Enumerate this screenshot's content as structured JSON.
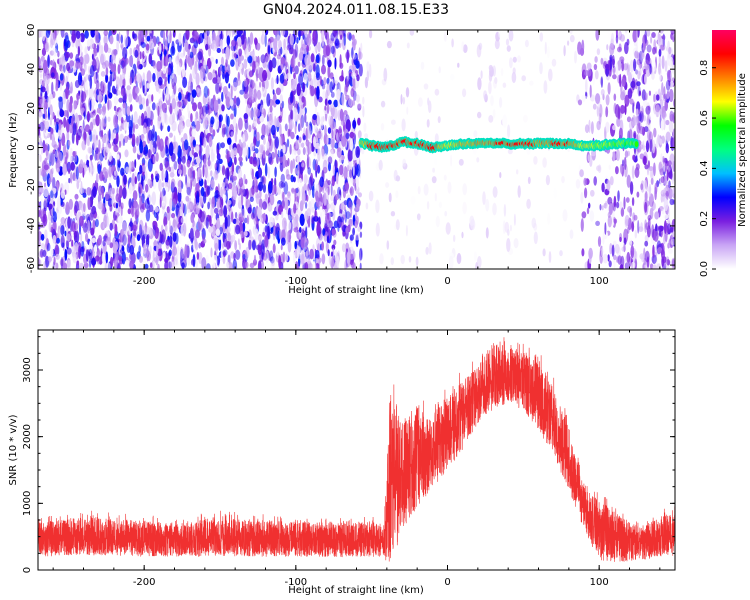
{
  "title": "GN04.2024.011.08.15.E33",
  "colors": {
    "spectrogram_noise": "#7a1fe0",
    "snr_line": "#f03030",
    "axis": "#000000"
  },
  "chart_data": [
    {
      "type": "heatmap",
      "xlabel": "Height of straight line (km)",
      "ylabel": "Frequency (Hz)",
      "xlim": [
        -270,
        150
      ],
      "ylim": [
        -62,
        60
      ],
      "xticks": [
        -200,
        -100,
        0,
        100
      ],
      "xtick_labels": [
        "-200",
        "-100",
        "0",
        "100"
      ],
      "yticks": [
        -60,
        -40,
        -20,
        0,
        20,
        40,
        60
      ],
      "ytick_labels": [
        "-60",
        "-40",
        "-20",
        "0",
        "20",
        "40",
        "60"
      ],
      "colorbar": {
        "label": "Normalized spectral amplitude",
        "range": [
          0,
          0.95
        ],
        "ticks": [
          0.0,
          0.2,
          0.4,
          0.6,
          0.8
        ],
        "tick_labels": [
          "0.0",
          "0.2",
          "0.4",
          "0.6",
          "0.8"
        ],
        "colormap": [
          "#ffffff",
          "#c9a5f5",
          "#7a1fe0",
          "#0000ff",
          "#00c0ff",
          "#00ff80",
          "#00ff00",
          "#ffff00",
          "#ff8000",
          "#ff0000",
          "#ff0060"
        ]
      },
      "regions": [
        {
          "x": [
            -270,
            -57
          ],
          "description": "broadband noise",
          "amplitude": [
            0.0,
            0.25
          ]
        },
        {
          "x": [
            -57,
            85
          ],
          "description": "near-empty band",
          "amplitude": [
            0.0,
            0.05
          ]
        },
        {
          "x": [
            85,
            150
          ],
          "description": "broadband noise (fading in)",
          "amplitude": [
            0.0,
            0.2
          ]
        }
      ],
      "signal_trace": {
        "frequency_hz": 2,
        "x": [
          -57,
          125
        ],
        "points": [
          {
            "x": -55,
            "f": 2,
            "a": 0.6
          },
          {
            "x": -50,
            "f": 1,
            "a": 0.9
          },
          {
            "x": -40,
            "f": 0,
            "a": 0.95
          },
          {
            "x": -30,
            "f": 3,
            "a": 0.85
          },
          {
            "x": -20,
            "f": 2,
            "a": 0.9
          },
          {
            "x": -10,
            "f": 0,
            "a": 0.95
          },
          {
            "x": 0,
            "f": 1,
            "a": 0.5
          },
          {
            "x": 10,
            "f": 2,
            "a": 0.7
          },
          {
            "x": 20,
            "f": 2,
            "a": 0.75
          },
          {
            "x": 30,
            "f": 2,
            "a": 0.8
          },
          {
            "x": 40,
            "f": 2,
            "a": 0.85
          },
          {
            "x": 50,
            "f": 2,
            "a": 0.9
          },
          {
            "x": 60,
            "f": 2,
            "a": 0.75
          },
          {
            "x": 70,
            "f": 2,
            "a": 0.8
          },
          {
            "x": 80,
            "f": 2,
            "a": 0.85
          },
          {
            "x": 90,
            "f": 1,
            "a": 0.5
          },
          {
            "x": 100,
            "f": 1,
            "a": 0.4
          },
          {
            "x": 110,
            "f": 2,
            "a": 0.35
          },
          {
            "x": 120,
            "f": 2,
            "a": 0.3
          }
        ]
      }
    },
    {
      "type": "line",
      "xlabel": "Height of straight line (km)",
      "ylabel": "SNR (10 * v/v)",
      "xlim": [
        -270,
        150
      ],
      "ylim": [
        0,
        3600
      ],
      "xticks": [
        -200,
        -100,
        0,
        100
      ],
      "xtick_labels": [
        "-200",
        "-100",
        "0",
        "100"
      ],
      "yticks": [
        0,
        1000,
        2000,
        3000
      ],
      "ytick_labels": [
        "0",
        "1000",
        "2000",
        "3000"
      ],
      "envelope": {
        "x": [
          -270,
          -240,
          -210,
          -180,
          -150,
          -120,
          -90,
          -60,
          -42,
          -38,
          -30,
          -20,
          -10,
          0,
          10,
          20,
          30,
          40,
          50,
          60,
          70,
          80,
          90,
          100,
          110,
          120,
          130,
          140,
          150
        ],
        "low": [
          200,
          220,
          210,
          200,
          210,
          200,
          200,
          190,
          200,
          0,
          600,
          900,
          1200,
          1500,
          1800,
          2200,
          2400,
          2500,
          2400,
          2100,
          1700,
          1200,
          600,
          150,
          100,
          120,
          150,
          200,
          200
        ],
        "high": [
          800,
          900,
          850,
          800,
          900,
          850,
          800,
          800,
          820,
          2900,
          2600,
          2700,
          2500,
          2800,
          3000,
          3200,
          3550,
          3500,
          3400,
          3300,
          2900,
          2300,
          1300,
          1200,
          1000,
          800,
          700,
          900,
          1000
        ],
        "mean": [
          450,
          470,
          460,
          450,
          460,
          450,
          450,
          440,
          450,
          1200,
          1400,
          1700,
          1800,
          2100,
          2400,
          2600,
          2900,
          3000,
          2900,
          2600,
          2200,
          1700,
          1000,
          600,
          500,
          450,
          450,
          500,
          550
        ]
      }
    }
  ]
}
